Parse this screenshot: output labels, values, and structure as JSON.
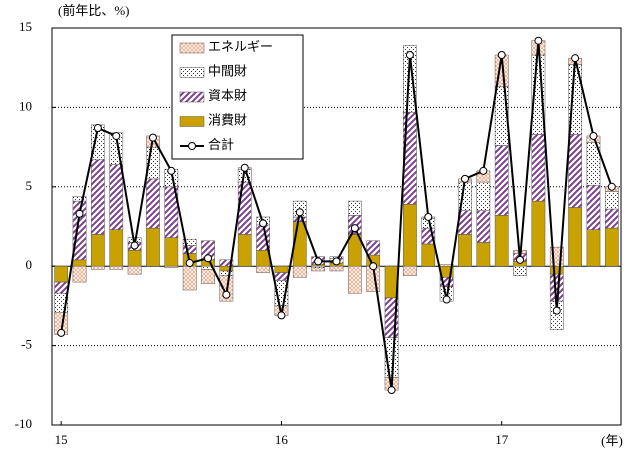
{
  "chart_data": {
    "type": "bar",
    "stacked": true,
    "ylabel": "(前年比、%)",
    "xlabel": "(年)",
    "categories": [
      "15",
      null,
      null,
      null,
      null,
      null,
      null,
      null,
      null,
      null,
      null,
      null,
      "16",
      null,
      null,
      null,
      null,
      null,
      null,
      null,
      null,
      null,
      null,
      null,
      "17",
      null,
      null,
      null,
      null,
      null,
      null
    ],
    "series": [
      {
        "name": "エネルギー",
        "color": "#f4a582",
        "values": [
          -1.4,
          -1.0,
          -0.2,
          -0.2,
          -0.5,
          0.7,
          -0.1,
          -1.5,
          -0.9,
          -1.6,
          0.1,
          -0.4,
          -0.6,
          -0.7,
          -0.2,
          -0.3,
          -1.7,
          -1.6,
          -0.8,
          -0.6,
          0.1,
          0.1,
          0.2,
          0.7,
          2.0,
          0.2,
          0.9,
          1.2,
          0.4,
          0.4,
          0.3
        ]
      },
      {
        "name": "中間財",
        "color": "#ffffff",
        "values": [
          -1.2,
          0.3,
          2.2,
          2.0,
          0.3,
          2.0,
          1.1,
          0.4,
          -0.2,
          -0.3,
          0.8,
          0.5,
          -1.6,
          1.0,
          -0.1,
          0.1,
          0.9,
          0.0,
          -2.5,
          4.2,
          0.6,
          -0.9,
          1.8,
          1.8,
          3.7,
          -0.6,
          5.0,
          -1.8,
          4.4,
          2.7,
          1.1
        ]
      },
      {
        "name": "資本財",
        "color": "#7b3f8c",
        "values": [
          -0.7,
          3.7,
          4.7,
          4.1,
          0.5,
          3.1,
          3.2,
          0.5,
          1.2,
          0.4,
          3.3,
          1.6,
          -0.5,
          0.3,
          0.5,
          0.3,
          1.2,
          0.9,
          -2.5,
          5.8,
          1.0,
          -0.6,
          1.5,
          2.0,
          4.4,
          0.5,
          4.2,
          -1.7,
          4.6,
          2.8,
          1.2
        ]
      },
      {
        "name": "消費財",
        "color": "#c9a100",
        "values": [
          -1.0,
          0.4,
          2.0,
          2.3,
          1.0,
          2.4,
          1.8,
          0.8,
          0.4,
          -0.3,
          2.0,
          1.0,
          -0.4,
          2.8,
          0.1,
          0.2,
          2.0,
          0.7,
          -2.0,
          3.9,
          1.4,
          -0.7,
          2.0,
          1.5,
          3.2,
          0.3,
          4.1,
          -0.5,
          3.7,
          2.3,
          2.4
        ]
      }
    ],
    "line": {
      "name": "合計",
      "color": "#000000",
      "values": [
        -4.2,
        3.3,
        8.7,
        8.2,
        1.3,
        8.1,
        6.0,
        0.2,
        0.5,
        -1.8,
        6.2,
        2.7,
        -3.1,
        3.4,
        0.3,
        0.3,
        2.4,
        0.0,
        -7.8,
        13.3,
        3.1,
        -2.1,
        5.5,
        6.0,
        13.3,
        0.4,
        14.2,
        -2.8,
        13.1,
        8.2,
        5.0
      ]
    },
    "ylim": [
      -10,
      15
    ],
    "yticks": [
      -10,
      -5,
      0,
      5,
      10,
      15
    ],
    "grid": true
  }
}
